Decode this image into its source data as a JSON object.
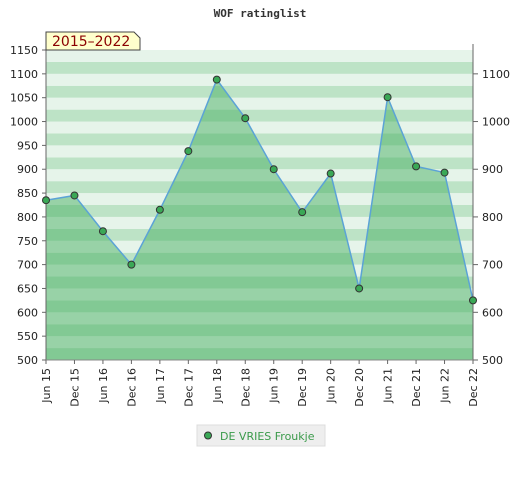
{
  "chart_data": {
    "type": "area",
    "title": "WOF ratinglist",
    "badge": "2015–2022",
    "categories": [
      "Jun 15",
      "Dec 15",
      "Jun 16",
      "Dec 16",
      "Jun 17",
      "Dec 17",
      "Jun 18",
      "Dec 18",
      "Jun 19",
      "Dec 19",
      "Jun 20",
      "Dec 20",
      "Jun 21",
      "Dec 21",
      "Jun 22",
      "Dec 22"
    ],
    "series": [
      {
        "name": "DE VRIES Froukje",
        "values": [
          835,
          845,
          770,
          700,
          815,
          938,
          1088,
          1007,
          900,
          810,
          891,
          650,
          1051,
          906,
          893,
          625
        ]
      }
    ],
    "ylim_left": [
      500,
      1150
    ],
    "yticks_left": [
      500,
      550,
      600,
      650,
      700,
      750,
      800,
      850,
      900,
      950,
      1000,
      1050,
      1100,
      1150
    ],
    "ylim_right": [
      500,
      1150
    ],
    "yticks_right": [
      500,
      600,
      700,
      800,
      900,
      1000,
      1100
    ],
    "legend_position": "bottom-center",
    "colors": {
      "line": "#5ba3d6",
      "fill": "#3aa856",
      "marker": "#3aa856",
      "band_dark": "#bde3c6",
      "band_light": "#e6f4ea",
      "badge_bg": "#ffffcc",
      "badge_text": "#8b0000",
      "legend_text": "#3a9a4a"
    }
  }
}
